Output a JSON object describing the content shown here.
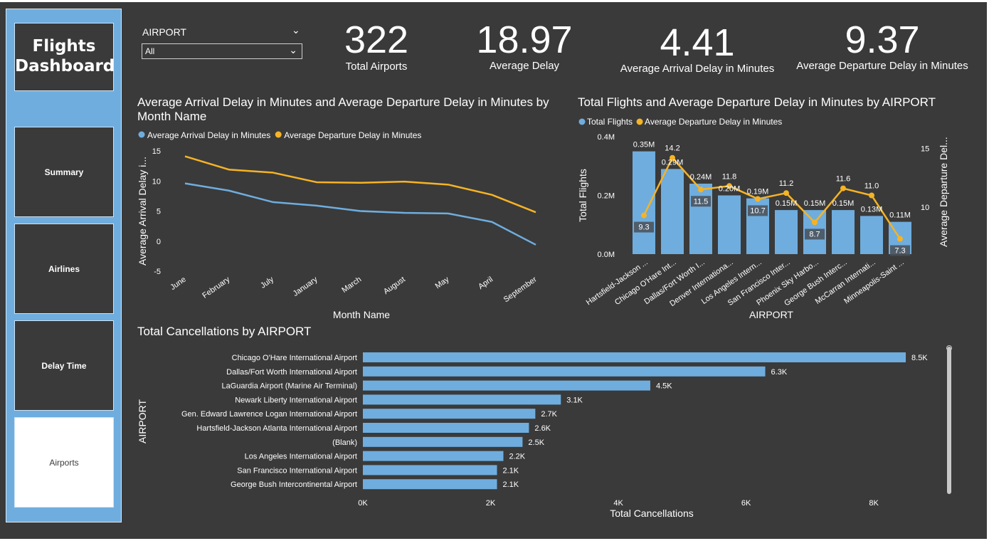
{
  "sidebar": {
    "title": "Flights Dashboard",
    "items": [
      {
        "label": "Summary"
      },
      {
        "label": "Airlines"
      },
      {
        "label": "Delay Time"
      },
      {
        "label": "Airports"
      }
    ]
  },
  "slicer": {
    "label": "AIRPORT",
    "value": "All"
  },
  "kpis": [
    {
      "value": "322",
      "label": "Total Airports"
    },
    {
      "value": "18.97",
      "label": "Average Delay"
    },
    {
      "value": "4.41",
      "label": "Average Arrival Delay in Minutes"
    },
    {
      "value": "9.37",
      "label": "Average Departure Delay in Minutes"
    }
  ],
  "colors": {
    "background": "#3a3a3a",
    "blue": "#6fadde",
    "orange": "#f5b325",
    "text": "#ffffff"
  },
  "chart_data": [
    {
      "type": "line",
      "title": "Average Arrival Delay in Minutes and Average Departure Delay in Minutes by Month Name",
      "xlabel": "Month Name",
      "ylabel": "Average Arrival Delay i...",
      "categories": [
        "June",
        "February",
        "July",
        "January",
        "March",
        "August",
        "May",
        "April",
        "September"
      ],
      "ylim": [
        -5,
        15
      ],
      "yticks": [
        "15",
        "10",
        "5",
        "0",
        "-5"
      ],
      "legend_position": "top-left",
      "series": [
        {
          "name": "Average Arrival Delay in Minutes",
          "color": "#6fadde",
          "values": [
            9.6,
            8.4,
            6.5,
            5.9,
            5.0,
            4.7,
            4.6,
            3.2,
            -0.6
          ]
        },
        {
          "name": "Average Departure Delay in Minutes",
          "color": "#f5b325",
          "values": [
            14.1,
            11.9,
            11.4,
            9.8,
            9.7,
            9.9,
            9.4,
            7.7,
            4.8
          ]
        }
      ]
    },
    {
      "type": "bar",
      "title": "Total Flights and Average Departure Delay in Minutes by AIRPORT",
      "xlabel": "AIRPORT",
      "ylabel": "Total Flights",
      "y2label": "Average Departure Del...",
      "categories": [
        "Hartsfield-Jackson ...",
        "Chicago O'Hare Int...",
        "Dallas/Fort Worth I...",
        "Denver Internationa...",
        "Los Angeles Intern...",
        "San Francisco Inter...",
        "Phoenix Sky Harbo...",
        "George Bush Interc...",
        "McCarran Internati...",
        "Minneapolis-Saint ..."
      ],
      "ylim": [
        0,
        0.4
      ],
      "yticks": [
        "0.4M",
        "0.2M",
        "0.0M"
      ],
      "y2lim": [
        6,
        16
      ],
      "y2ticks": [
        "15",
        "10"
      ],
      "legend_position": "top-left",
      "series": [
        {
          "name": "Total Flights",
          "type": "bar",
          "color": "#6fadde",
          "values": [
            0.35,
            0.29,
            0.24,
            0.2,
            0.19,
            0.15,
            0.15,
            0.15,
            0.13,
            0.11
          ],
          "labels": [
            "0.35M",
            "0.29M",
            "0.24M",
            "0.20M",
            "0.19M",
            "0.15M",
            "0.15M",
            "0.15M",
            "0.13M",
            "0.11M"
          ]
        },
        {
          "name": "Average Departure Delay in Minutes",
          "type": "line",
          "color": "#f5b325",
          "values": [
            9.3,
            14.2,
            11.5,
            11.8,
            10.7,
            11.2,
            8.7,
            11.6,
            11.0,
            7.3
          ],
          "labels": [
            "9.3",
            "14.2",
            "11.5",
            "11.8",
            "10.7",
            "11.2",
            "8.7",
            "11.6",
            "11.0",
            "7.3"
          ]
        }
      ]
    },
    {
      "type": "bar",
      "orientation": "horizontal",
      "title": "Total Cancellations by AIRPORT",
      "xlabel": "Total Cancellations",
      "ylabel": "AIRPORT",
      "categories": [
        "Chicago O'Hare International Airport",
        "Dallas/Fort Worth International Airport",
        "LaGuardia Airport (Marine Air Terminal)",
        "Newark Liberty International Airport",
        "Gen. Edward Lawrence Logan International Airport",
        "Hartsfield-Jackson Atlanta International Airport",
        "(Blank)",
        "Los Angeles International Airport",
        "San Francisco International Airport",
        "George Bush Intercontinental Airport"
      ],
      "values": [
        8500,
        6300,
        4500,
        3100,
        2700,
        2600,
        2500,
        2200,
        2100,
        2100
      ],
      "labels": [
        "8.5K",
        "6.3K",
        "4.5K",
        "3.1K",
        "2.7K",
        "2.6K",
        "2.5K",
        "2.2K",
        "2.1K",
        "2.1K"
      ],
      "xlim": [
        0,
        8600
      ],
      "xticks": [
        "0K",
        "2K",
        "4K",
        "6K",
        "8K"
      ],
      "color": "#6fadde"
    }
  ]
}
